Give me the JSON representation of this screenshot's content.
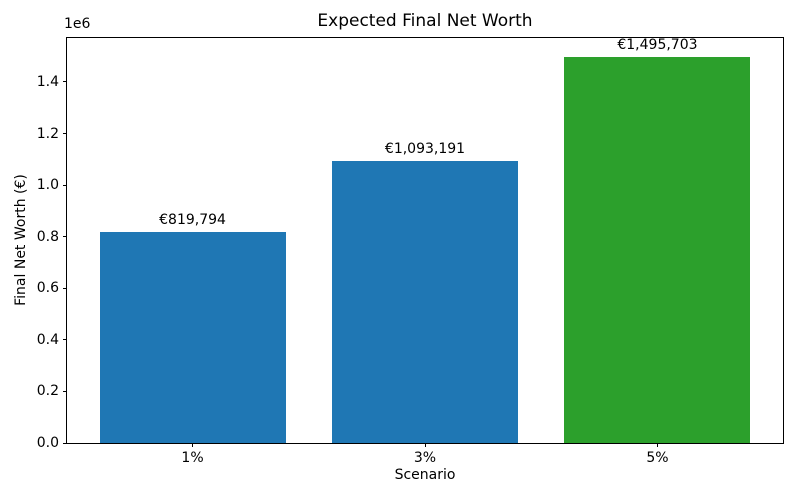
{
  "chart_data": {
    "type": "bar",
    "title": "Expected Final Net Worth",
    "xlabel": "Scenario",
    "ylabel": "Final Net Worth (€)",
    "y_axis_offset_label": "1e6",
    "categories": [
      "1%",
      "3%",
      "5%"
    ],
    "values": [
      819794,
      1093191,
      1495703
    ],
    "value_labels": [
      "€819,794",
      "€1,093,191",
      "€1,495,703"
    ],
    "bar_colors": [
      "#1f77b4",
      "#1f77b4",
      "#2ca02c"
    ],
    "bar_width": 0.8,
    "xlim": [
      -0.54,
      2.54
    ],
    "ylim": [
      0,
      1570488
    ],
    "yticks": [
      0,
      200000,
      400000,
      600000,
      800000,
      1000000,
      1200000,
      1400000
    ],
    "ytick_labels": [
      "0.0",
      "0.2",
      "0.4",
      "0.6",
      "0.8",
      "1.0",
      "1.2",
      "1.4"
    ],
    "grid": false,
    "legend": null
  }
}
